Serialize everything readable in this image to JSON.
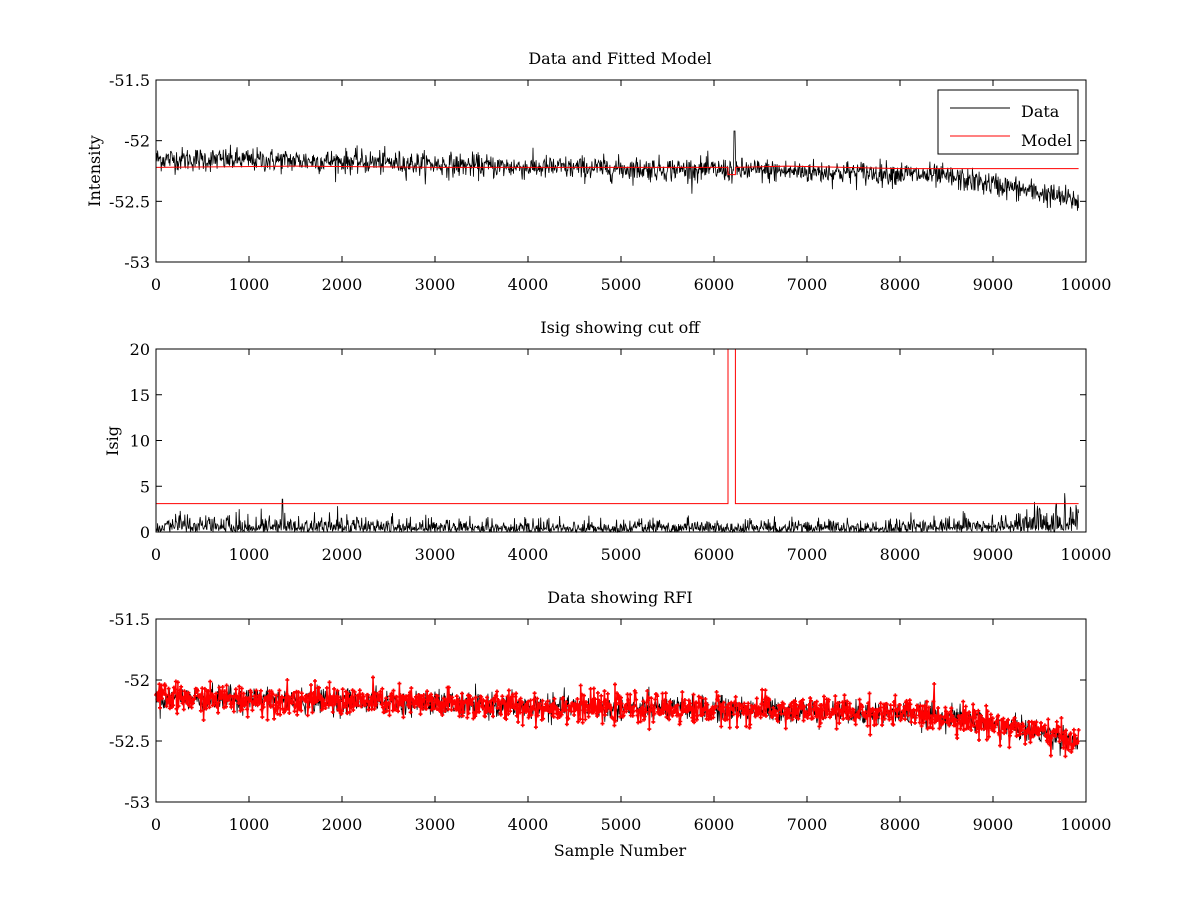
{
  "figure": {
    "background": "#ffffff"
  },
  "colors": {
    "data": "#000000",
    "model": "#ff0000",
    "rfi": "#ff0000"
  },
  "chart_data": [
    {
      "type": "line",
      "title": "Data and Fitted Model",
      "xlabel": "",
      "ylabel": "Intensity",
      "xlim": [
        0,
        10000
      ],
      "ylim": [
        -53,
        -51.5
      ],
      "xticks": [
        0,
        1000,
        2000,
        3000,
        4000,
        5000,
        6000,
        7000,
        8000,
        9000,
        10000
      ],
      "yticks": [
        -53,
        -52.5,
        -52,
        -51.5
      ],
      "ytick_labels": [
        "-53",
        "-52.5",
        "-52",
        "-51.5"
      ],
      "grid": false,
      "legend": {
        "placement": "top-right",
        "entries": [
          "Data",
          "Model"
        ]
      },
      "series": [
        {
          "name": "Data",
          "color": "#000000",
          "style": "noisy-line",
          "x_range": [
            1,
            9920
          ],
          "noise_amplitude": 0.09,
          "trend": {
            "x": [
              0,
              2000,
              4000,
              6000,
              8000,
              8500,
              9000,
              9500,
              9920
            ],
            "y": [
              -52.15,
              -52.17,
              -52.22,
              -52.24,
              -52.27,
              -52.3,
              -52.36,
              -52.43,
              -52.5
            ]
          },
          "spike": {
            "x": 6220,
            "y": -51.92
          }
        },
        {
          "name": "Model",
          "color": "#ff0000",
          "style": "line",
          "x": [
            0,
            1500,
            3000,
            6150,
            6150,
            6230,
            6230,
            6800,
            8000,
            9920
          ],
          "y": [
            -52.22,
            -52.21,
            -52.22,
            -52.22,
            -52.28,
            -52.28,
            -52.22,
            -52.21,
            -52.23,
            -52.23
          ]
        }
      ]
    },
    {
      "type": "line",
      "title": "Isig showing cut off",
      "xlabel": "",
      "ylabel": "Isig",
      "xlim": [
        0,
        10000
      ],
      "ylim": [
        0,
        20
      ],
      "xticks": [
        0,
        1000,
        2000,
        3000,
        4000,
        5000,
        6000,
        7000,
        8000,
        9000,
        10000
      ],
      "yticks": [
        0,
        5,
        10,
        15,
        20
      ],
      "ytick_labels": [
        "0",
        "5",
        "10",
        "15",
        "20"
      ],
      "grid": false,
      "series": [
        {
          "name": "Isig",
          "color": "#000000",
          "style": "noisy-abs",
          "x_range": [
            1,
            9920
          ],
          "noise_amplitude": {
            "x": [
              0,
              4000,
              8000,
              9000,
              9920
            ],
            "y": [
              0.9,
              0.6,
              0.6,
              1.0,
              1.6
            ]
          }
        },
        {
          "name": "Cut off",
          "color": "#ff0000",
          "style": "line",
          "x": [
            0,
            6150,
            6150,
            6230,
            6230,
            9920
          ],
          "y": [
            3.1,
            3.1,
            20,
            20,
            3.1,
            3.1
          ]
        }
      ]
    },
    {
      "type": "line",
      "title": "Data showing RFI",
      "xlabel": "Sample Number",
      "ylabel": "",
      "xlim": [
        0,
        10000
      ],
      "ylim": [
        -53,
        -51.5
      ],
      "xticks": [
        0,
        1000,
        2000,
        3000,
        4000,
        5000,
        6000,
        7000,
        8000,
        9000,
        10000
      ],
      "yticks": [
        -53,
        -52.5,
        -52,
        -51.5
      ],
      "ytick_labels": [
        "-53",
        "-52.5",
        "-52",
        "-51.5"
      ],
      "grid": false,
      "series": [
        {
          "name": "Data",
          "color": "#000000",
          "style": "noisy-line",
          "x_range": [
            1,
            9920
          ],
          "noise_amplitude": 0.09,
          "trend": {
            "x": [
              0,
              2000,
              4000,
              6000,
              8000,
              8500,
              9000,
              9500,
              9920
            ],
            "y": [
              -52.15,
              -52.17,
              -52.22,
              -52.24,
              -52.27,
              -52.3,
              -52.36,
              -52.43,
              -52.5
            ]
          }
        },
        {
          "name": "RFI",
          "color": "#ff0000",
          "style": "noisy-markers",
          "x_range": [
            1,
            9920
          ],
          "noise_amplitude": 0.11,
          "trend": {
            "x": [
              0,
              2000,
              4000,
              6000,
              8000,
              8500,
              9000,
              9500,
              9920
            ],
            "y": [
              -52.15,
              -52.17,
              -52.22,
              -52.24,
              -52.27,
              -52.3,
              -52.36,
              -52.43,
              -52.5
            ]
          }
        }
      ]
    }
  ]
}
